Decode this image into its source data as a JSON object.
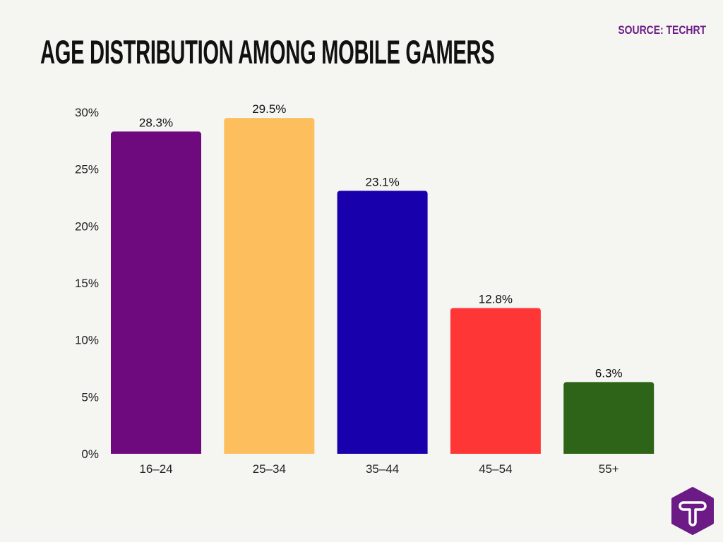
{
  "chart_data": {
    "type": "bar",
    "title": "AGE DISTRIBUTION AMONG MOBILE GAMERS",
    "source": "SOURCE: TECHRT",
    "categories": [
      "16–24",
      "25–34",
      "35–44",
      "45–54",
      "55+"
    ],
    "values": [
      28.3,
      29.5,
      23.1,
      12.8,
      6.3
    ],
    "data_labels": [
      "28.3%",
      "29.5%",
      "23.1%",
      "12.8%",
      "6.3%"
    ],
    "colors": [
      "#6e0a7e",
      "#fdbf5e",
      "#1900ad",
      "#ff3636",
      "#2e6418"
    ],
    "yticks": [
      "0%",
      "5%",
      "10%",
      "15%",
      "20%",
      "25%",
      "30%"
    ],
    "ytick_values": [
      0,
      5,
      10,
      15,
      20,
      25,
      30
    ],
    "ylim": [
      0,
      30
    ],
    "xlabel": "",
    "ylabel": "",
    "grid": false,
    "legend": "none"
  },
  "brand": {
    "logo_letter": "T",
    "logo_color": "#6b1a86"
  }
}
